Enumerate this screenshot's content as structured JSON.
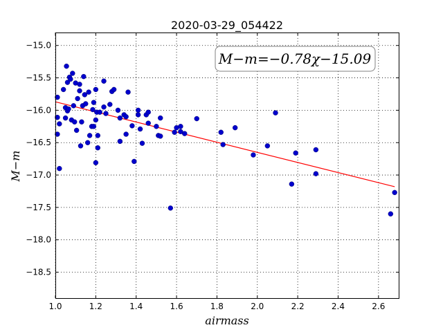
{
  "chart_data": {
    "type": "scatter",
    "title": "2020-03-29_054422",
    "xlabel": "airmass",
    "ylabel": "M−m",
    "xlim": [
      1.0,
      2.7
    ],
    "ylim": [
      -18.9,
      -14.8
    ],
    "y_inverted": true,
    "grid": true,
    "grid_style": "dotted",
    "xticks": [
      "1.0",
      "1.2",
      "1.4",
      "1.6",
      "1.8",
      "2.0",
      "2.2",
      "2.4",
      "2.6"
    ],
    "yticks": [
      "−15.0",
      "−15.5",
      "−16.0",
      "−16.5",
      "−17.0",
      "−17.5",
      "−18.0",
      "−18.5"
    ],
    "annotation": "M−m=−0.78χ−15.09",
    "annotation_placement": "top-right",
    "fit": {
      "slope": -0.78,
      "intercept": -15.09,
      "x_range": [
        1.0,
        2.68
      ],
      "color": "#ff0000"
    },
    "series": [
      {
        "color": "#0000cc",
        "points": [
          [
            1.01,
            -16.11
          ],
          [
            1.01,
            -16.37
          ],
          [
            1.01,
            -15.8
          ],
          [
            1.02,
            -16.9
          ],
          [
            1.02,
            -16.21
          ],
          [
            1.04,
            -15.68
          ],
          [
            1.05,
            -15.96
          ],
          [
            1.05,
            -16.12
          ],
          [
            1.055,
            -15.32
          ],
          [
            1.06,
            -16.01
          ],
          [
            1.06,
            -15.57
          ],
          [
            1.065,
            -15.98
          ],
          [
            1.07,
            -15.49
          ],
          [
            1.075,
            -15.52
          ],
          [
            1.08,
            -16.15
          ],
          [
            1.085,
            -15.43
          ],
          [
            1.09,
            -15.93
          ],
          [
            1.095,
            -16.18
          ],
          [
            1.1,
            -15.58
          ],
          [
            1.105,
            -16.31
          ],
          [
            1.11,
            -15.82
          ],
          [
            1.12,
            -15.6
          ],
          [
            1.12,
            -15.7
          ],
          [
            1.125,
            -16.55
          ],
          [
            1.13,
            -16.18
          ],
          [
            1.135,
            -15.93
          ],
          [
            1.14,
            -15.48
          ],
          [
            1.145,
            -15.76
          ],
          [
            1.15,
            -15.9
          ],
          [
            1.16,
            -16.5
          ],
          [
            1.165,
            -15.72
          ],
          [
            1.17,
            -16.39
          ],
          [
            1.18,
            -16.25
          ],
          [
            1.185,
            -15.99
          ],
          [
            1.19,
            -15.88
          ],
          [
            1.19,
            -16.25
          ],
          [
            1.2,
            -16.15
          ],
          [
            1.2,
            -16.81
          ],
          [
            1.2,
            -15.68
          ],
          [
            1.205,
            -16.03
          ],
          [
            1.21,
            -16.58
          ],
          [
            1.21,
            -16.39
          ],
          [
            1.22,
            -16.03
          ],
          [
            1.24,
            -15.55
          ],
          [
            1.24,
            -15.95
          ],
          [
            1.25,
            -16.05
          ],
          [
            1.27,
            -15.91
          ],
          [
            1.28,
            -15.71
          ],
          [
            1.29,
            -15.68
          ],
          [
            1.31,
            -16.0
          ],
          [
            1.32,
            -16.12
          ],
          [
            1.32,
            -16.48
          ],
          [
            1.34,
            -16.07
          ],
          [
            1.35,
            -16.37
          ],
          [
            1.35,
            -16.1
          ],
          [
            1.36,
            -15.72
          ],
          [
            1.38,
            -16.24
          ],
          [
            1.39,
            -16.79
          ],
          [
            1.41,
            -16.0
          ],
          [
            1.41,
            -16.07
          ],
          [
            1.42,
            -16.29
          ],
          [
            1.43,
            -16.51
          ],
          [
            1.45,
            -16.07
          ],
          [
            1.46,
            -16.03
          ],
          [
            1.46,
            -16.2
          ],
          [
            1.5,
            -16.25
          ],
          [
            1.51,
            -16.39
          ],
          [
            1.52,
            -16.12
          ],
          [
            1.52,
            -16.4
          ],
          [
            1.57,
            -17.51
          ],
          [
            1.59,
            -16.34
          ],
          [
            1.6,
            -16.27
          ],
          [
            1.62,
            -16.33
          ],
          [
            1.62,
            -16.25
          ],
          [
            1.64,
            -16.36
          ],
          [
            1.7,
            -16.13
          ],
          [
            1.82,
            -16.34
          ],
          [
            1.83,
            -16.53
          ],
          [
            1.89,
            -16.27
          ],
          [
            1.98,
            -16.69
          ],
          [
            2.05,
            -16.55
          ],
          [
            2.09,
            -16.04
          ],
          [
            2.17,
            -17.14
          ],
          [
            2.19,
            -16.66
          ],
          [
            2.29,
            -16.61
          ],
          [
            2.29,
            -16.98
          ],
          [
            2.66,
            -17.6
          ],
          [
            2.68,
            -17.27
          ]
        ]
      }
    ]
  }
}
